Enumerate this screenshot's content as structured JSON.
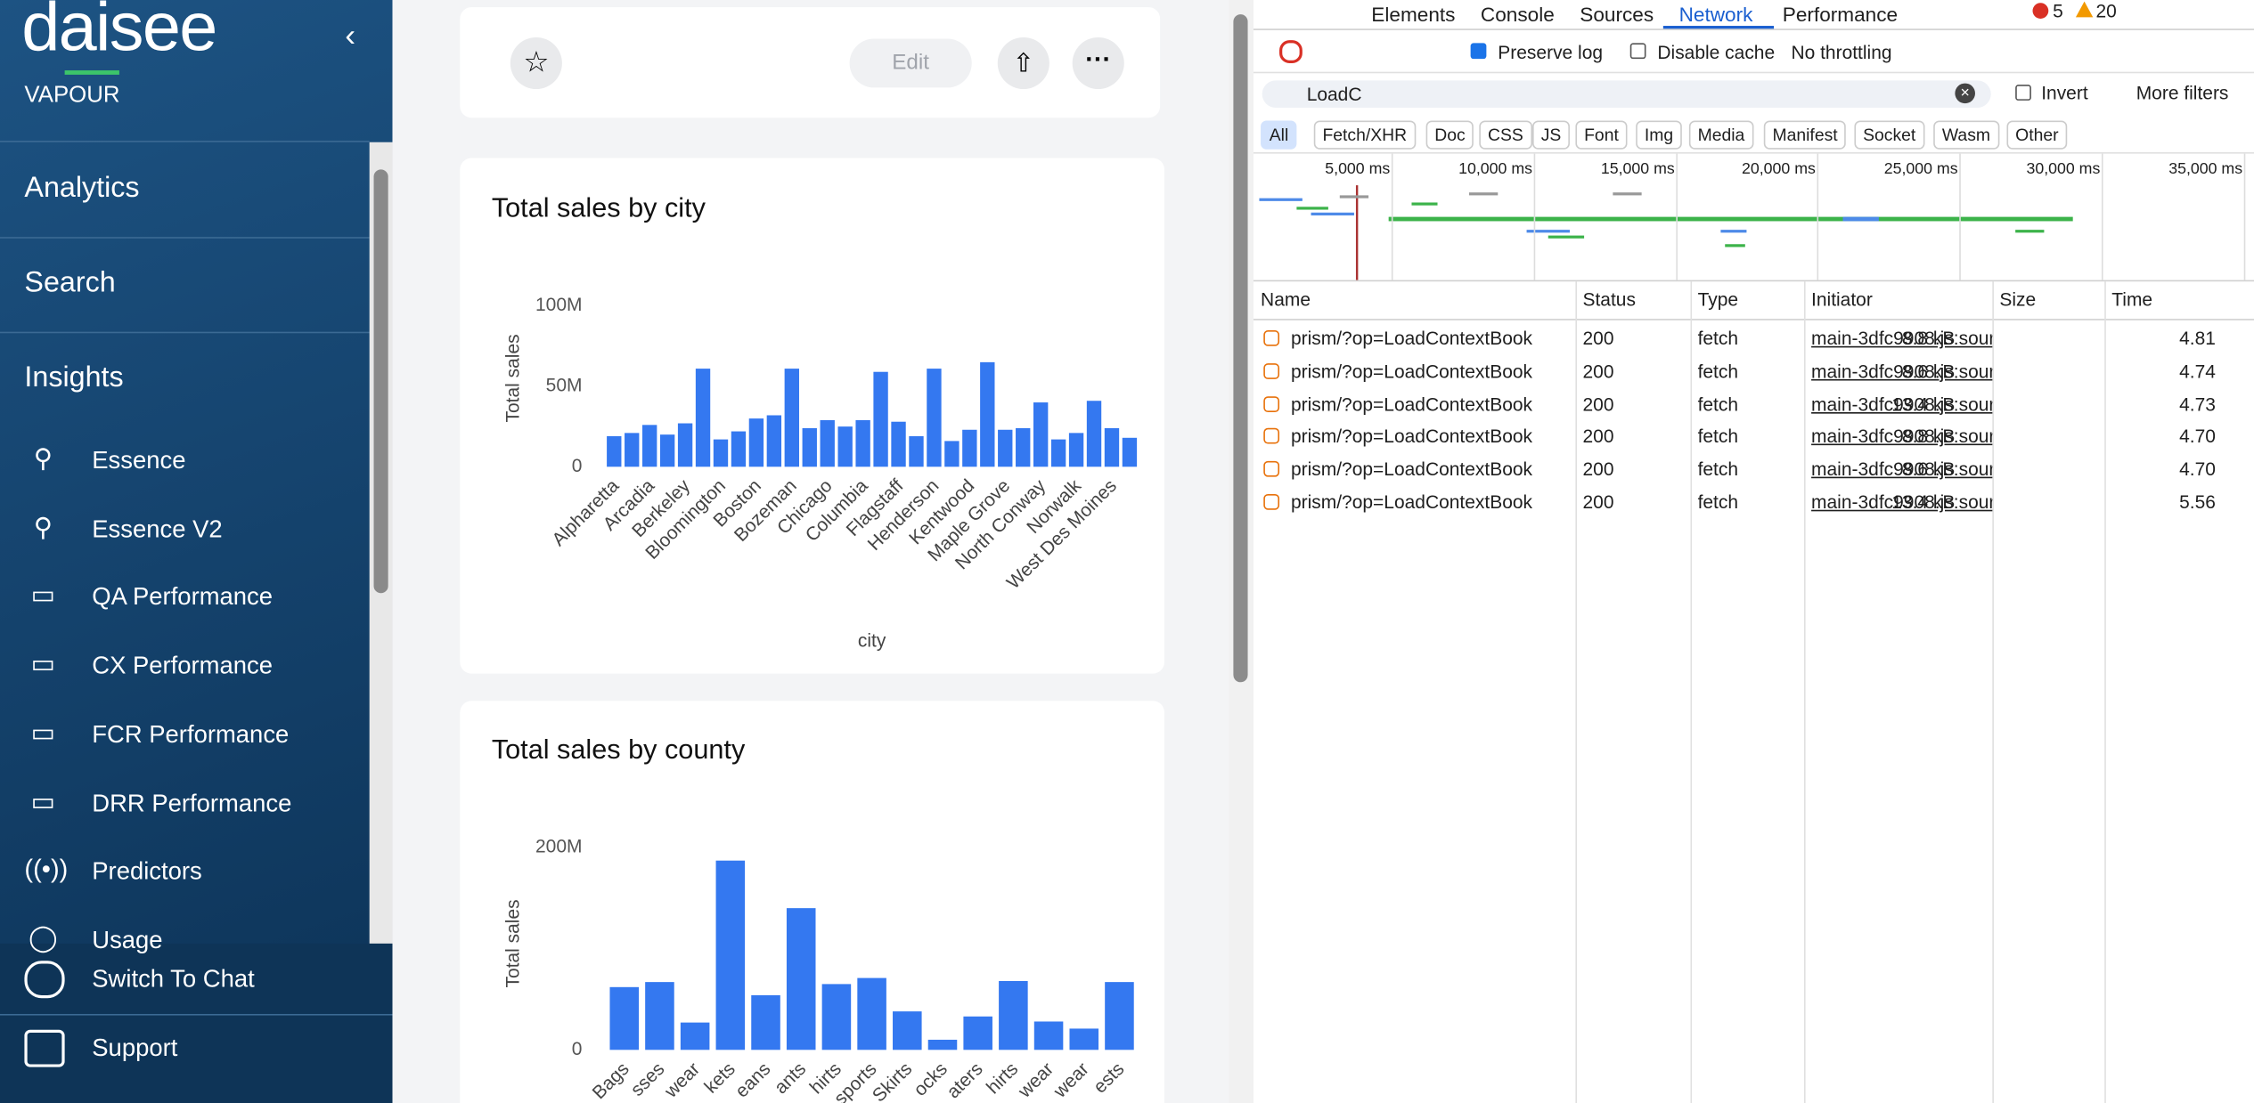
{
  "sidebar": {
    "logo": "daisee",
    "subtitle": "VAPOUR",
    "nav": [
      "Analytics",
      "Search",
      "Insights"
    ],
    "items": [
      "Essence",
      "Essence V2",
      "QA Performance",
      "CX Performance",
      "FCR Performance",
      "DRR Performance",
      "Predictors",
      "Usage"
    ],
    "footer": [
      "Switch To Chat",
      "Support"
    ]
  },
  "toolbar": {
    "edit": "Edit"
  },
  "chart_data": [
    {
      "type": "bar",
      "title": "Total sales by city",
      "x_label": "city",
      "y_label": "Total sales",
      "color": "#3478f0",
      "categories": [
        "Alpharetta",
        null,
        "Arcadia",
        null,
        "Berkeley",
        null,
        "Bloomington",
        null,
        "Boston",
        null,
        "Bozeman",
        null,
        "Chicago",
        null,
        "Columbia",
        null,
        "Flagstaff",
        null,
        "Henderson",
        null,
        "Kentwood",
        null,
        "Maple Grove",
        null,
        "North Conway",
        null,
        "Norwalk",
        null,
        "West Des Moines",
        null
      ],
      "values": [
        19000000,
        21000000,
        26000000,
        20000000,
        27000000,
        61000000,
        17000000,
        22000000,
        30000000,
        32000000,
        61000000,
        24000000,
        29000000,
        25000000,
        29000000,
        59000000,
        28000000,
        19000000,
        61000000,
        16000000,
        23000000,
        65000000,
        23000000,
        24000000,
        40000000,
        17000000,
        21000000,
        41000000,
        24000000,
        18000000
      ],
      "ylim": [
        0,
        110000000
      ],
      "yticks": [
        0,
        {
          "value": 50000000,
          "label": "50M"
        },
        {
          "value": 100000000,
          "label": "100M"
        }
      ]
    },
    {
      "type": "bar",
      "title": "Total sales by county",
      "y_label": "Total sales",
      "color": "#3478f0",
      "categories": [
        "Bags",
        "sses",
        "wear",
        "kets",
        "eans",
        "ants",
        "hirts",
        "sports",
        "Skirts",
        "ocks",
        "aters",
        "hirts",
        "wear",
        "wear",
        "ests"
      ],
      "values": [
        62000000,
        67000000,
        27000000,
        187000000,
        54000000,
        140000000,
        65000000,
        71000000,
        38000000,
        10000000,
        33000000,
        68000000,
        28000000,
        21000000,
        67000000
      ],
      "ylim": [
        0,
        210000000
      ],
      "yticks": [
        0,
        {
          "value": 200000000,
          "label": "200M"
        }
      ]
    }
  ],
  "devtools": {
    "tabs": [
      "Elements",
      "Console",
      "Sources",
      "Network",
      "Performance"
    ],
    "errors": "5",
    "warnings": "20",
    "preserve_log": "Preserve log",
    "disable_cache": "Disable cache",
    "throttling": "No throttling",
    "filter": "LoadC",
    "invert": "Invert",
    "more_filters": "More filters",
    "types": [
      "All",
      "Fetch/XHR",
      "Doc",
      "CSS",
      "JS",
      "Font",
      "Img",
      "Media",
      "Manifest",
      "Socket",
      "Wasm",
      "Other"
    ],
    "timeline": [
      "5,000 ms",
      "10,000 ms",
      "15,000 ms",
      "20,000 ms",
      "25,000 ms",
      "30,000 ms",
      "35,000 ms"
    ],
    "columns": [
      "Name",
      "Status",
      "Type",
      "Initiator",
      "Size",
      "Time"
    ],
    "rows": [
      [
        "prism/?op=LoadContextBook",
        "200",
        "fetch",
        "main-3dfc9908.js:sour",
        "8.8 kB",
        "4.81"
      ],
      [
        "prism/?op=LoadContextBook",
        "200",
        "fetch",
        "main-3dfc9908.js:sour",
        "8.6 kB",
        "4.74"
      ],
      [
        "prism/?op=LoadContextBook",
        "200",
        "fetch",
        "main-3dfc9908.js:sour",
        "13.4 kB",
        "4.73"
      ],
      [
        "prism/?op=LoadContextBook",
        "200",
        "fetch",
        "main-3dfc9908.js:sour",
        "8.8 kB",
        "4.70"
      ],
      [
        "prism/?op=LoadContextBook",
        "200",
        "fetch",
        "main-3dfc9908.js:sour",
        "8.6 kB",
        "4.70"
      ],
      [
        "prism/?op=LoadContextBook",
        "200",
        "fetch",
        "main-3dfc9908.js:sour",
        "13.4 kB",
        "5.56"
      ]
    ]
  }
}
